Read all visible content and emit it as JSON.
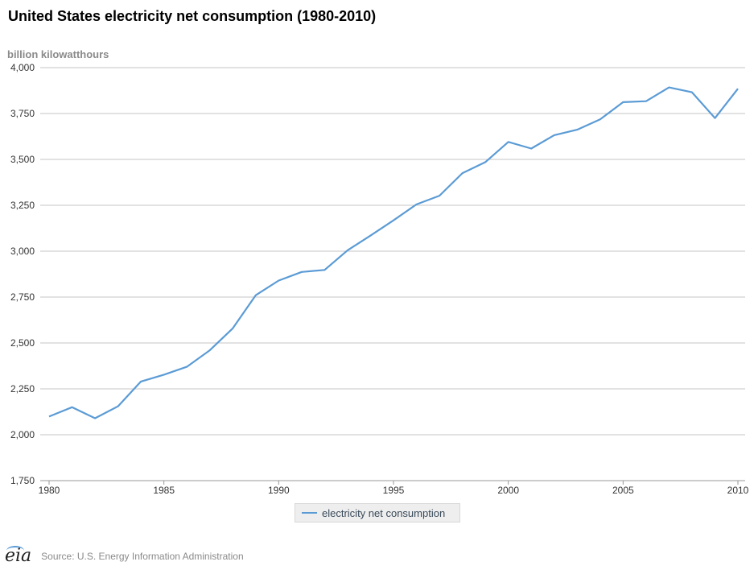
{
  "title": "United States electricity net consumption (1980-2010)",
  "unit_label": "billion kilowatthours",
  "legend": {
    "label": "electricity net consumption",
    "color": "#5b9bd5"
  },
  "footer": {
    "logo_text": "eia",
    "source": "Source: U.S. Energy Information Administration"
  },
  "chart_data": {
    "type": "line",
    "title": "United States electricity net consumption (1980-2010)",
    "ylabel": "billion kilowatthours",
    "xlabel": "",
    "x": [
      1980,
      1981,
      1982,
      1983,
      1984,
      1985,
      1986,
      1987,
      1988,
      1989,
      1990,
      1991,
      1992,
      1993,
      1994,
      1995,
      1996,
      1997,
      1998,
      1999,
      2000,
      2001,
      2002,
      2003,
      2004,
      2005,
      2006,
      2007,
      2008,
      2009,
      2010
    ],
    "series": [
      {
        "name": "electricity net consumption",
        "color": "#5b9bd5",
        "values": [
          2099,
          2150,
          2090,
          2155,
          2290,
          2327,
          2370,
          2460,
          2580,
          2760,
          2840,
          2887,
          2898,
          3005,
          3085,
          3168,
          3255,
          3302,
          3425,
          3485,
          3595,
          3559,
          3632,
          3662,
          3718,
          3812,
          3817,
          3892,
          3866,
          3725,
          3885
        ]
      }
    ],
    "xlim": [
      1980,
      2010
    ],
    "ylim": [
      1750,
      4000
    ],
    "yticks": [
      "1,750",
      "2,000",
      "2,250",
      "2,500",
      "2,750",
      "3,000",
      "3,250",
      "3,500",
      "3,750",
      "4,000"
    ],
    "xticks": [
      "1980",
      "1985",
      "1990",
      "1995",
      "2000",
      "2005",
      "2010"
    ],
    "grid": true,
    "legend_position": "bottom-center"
  }
}
